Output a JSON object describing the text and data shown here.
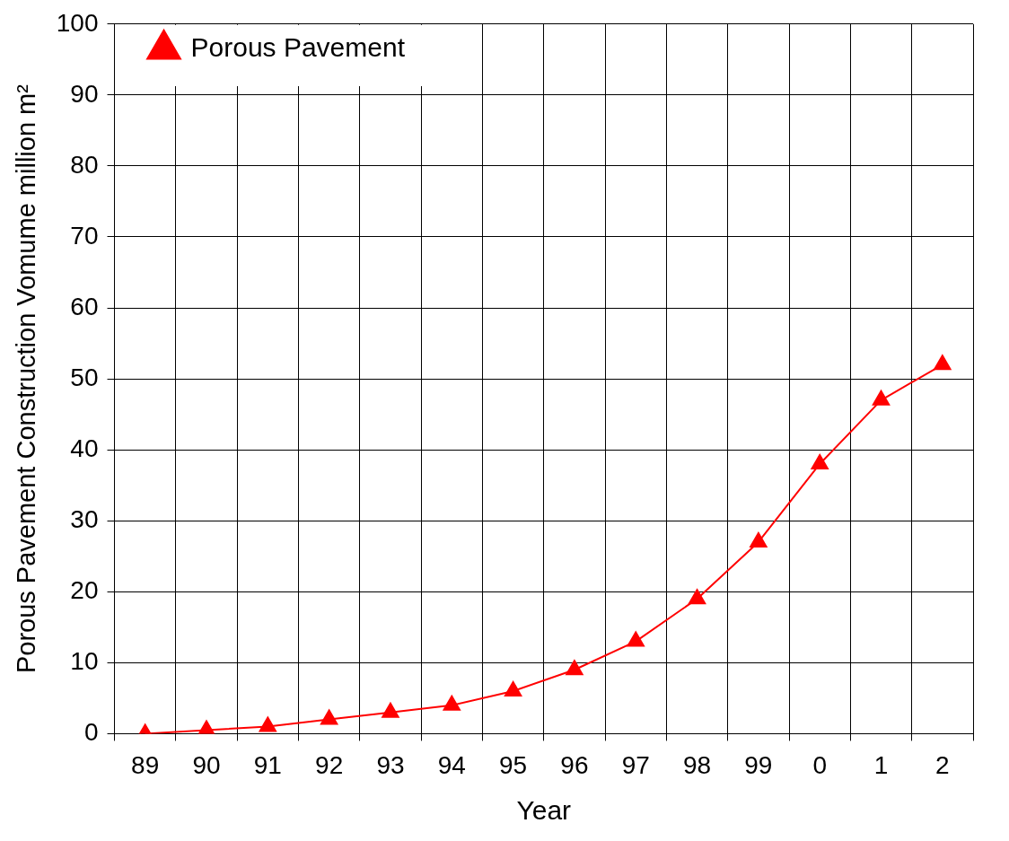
{
  "chart_data": {
    "type": "line",
    "xlabel": "Year",
    "ylabel": "Porous Pavement Construction Vomume million m²",
    "categories": [
      "89",
      "90",
      "91",
      "92",
      "93",
      "94",
      "95",
      "96",
      "97",
      "98",
      "99",
      "0",
      "1",
      "2"
    ],
    "series": [
      {
        "name": "Porous Pavement",
        "color": "#ff0000",
        "values": [
          0,
          0.5,
          1,
          2,
          3,
          4,
          6,
          9,
          13,
          19,
          27,
          38,
          47,
          52
        ]
      }
    ],
    "ylim": [
      0,
      100
    ],
    "yticks": [
      0,
      10,
      20,
      30,
      40,
      50,
      60,
      70,
      80,
      90,
      100
    ],
    "grid": true,
    "legend": "top left",
    "marker": "triangle",
    "line_style": "solid"
  }
}
